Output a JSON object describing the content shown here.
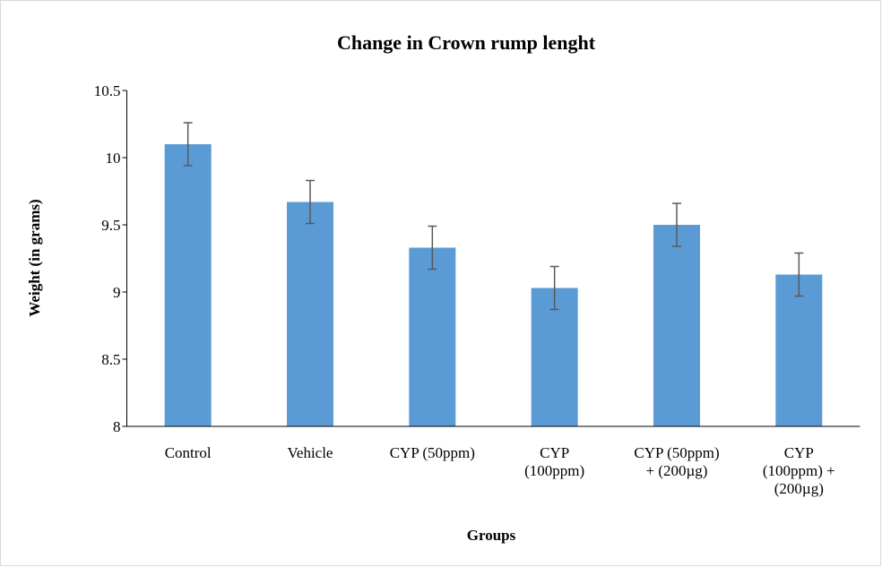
{
  "chart_data": {
    "type": "bar",
    "title": "Change in Crown rump lenght",
    "x_label": "Groups",
    "y_label": "Weight (in grams)",
    "categories": [
      "Control",
      "Vehicle",
      "CYP (50ppm)",
      "CYP\n(100ppm)",
      "CYP (50ppm)\n+ (200µg)",
      "CYP\n(100ppm) +\n(200µg)"
    ],
    "values": [
      10.1,
      9.67,
      9.33,
      9.03,
      9.5,
      9.13
    ],
    "errors": [
      0.16,
      0.16,
      0.16,
      0.16,
      0.16,
      0.16
    ],
    "color": "#5b9bd5",
    "ylim": [
      8,
      10.5
    ],
    "yticks": [
      {
        "value": 8,
        "label": "8"
      },
      {
        "value": 8.5,
        "label": "8.5"
      },
      {
        "value": 9,
        "label": "9"
      },
      {
        "value": 9.5,
        "label": "9.5"
      },
      {
        "value": 10,
        "label": "10"
      },
      {
        "value": 10.5,
        "label": "10.5"
      }
    ],
    "grid": false
  }
}
